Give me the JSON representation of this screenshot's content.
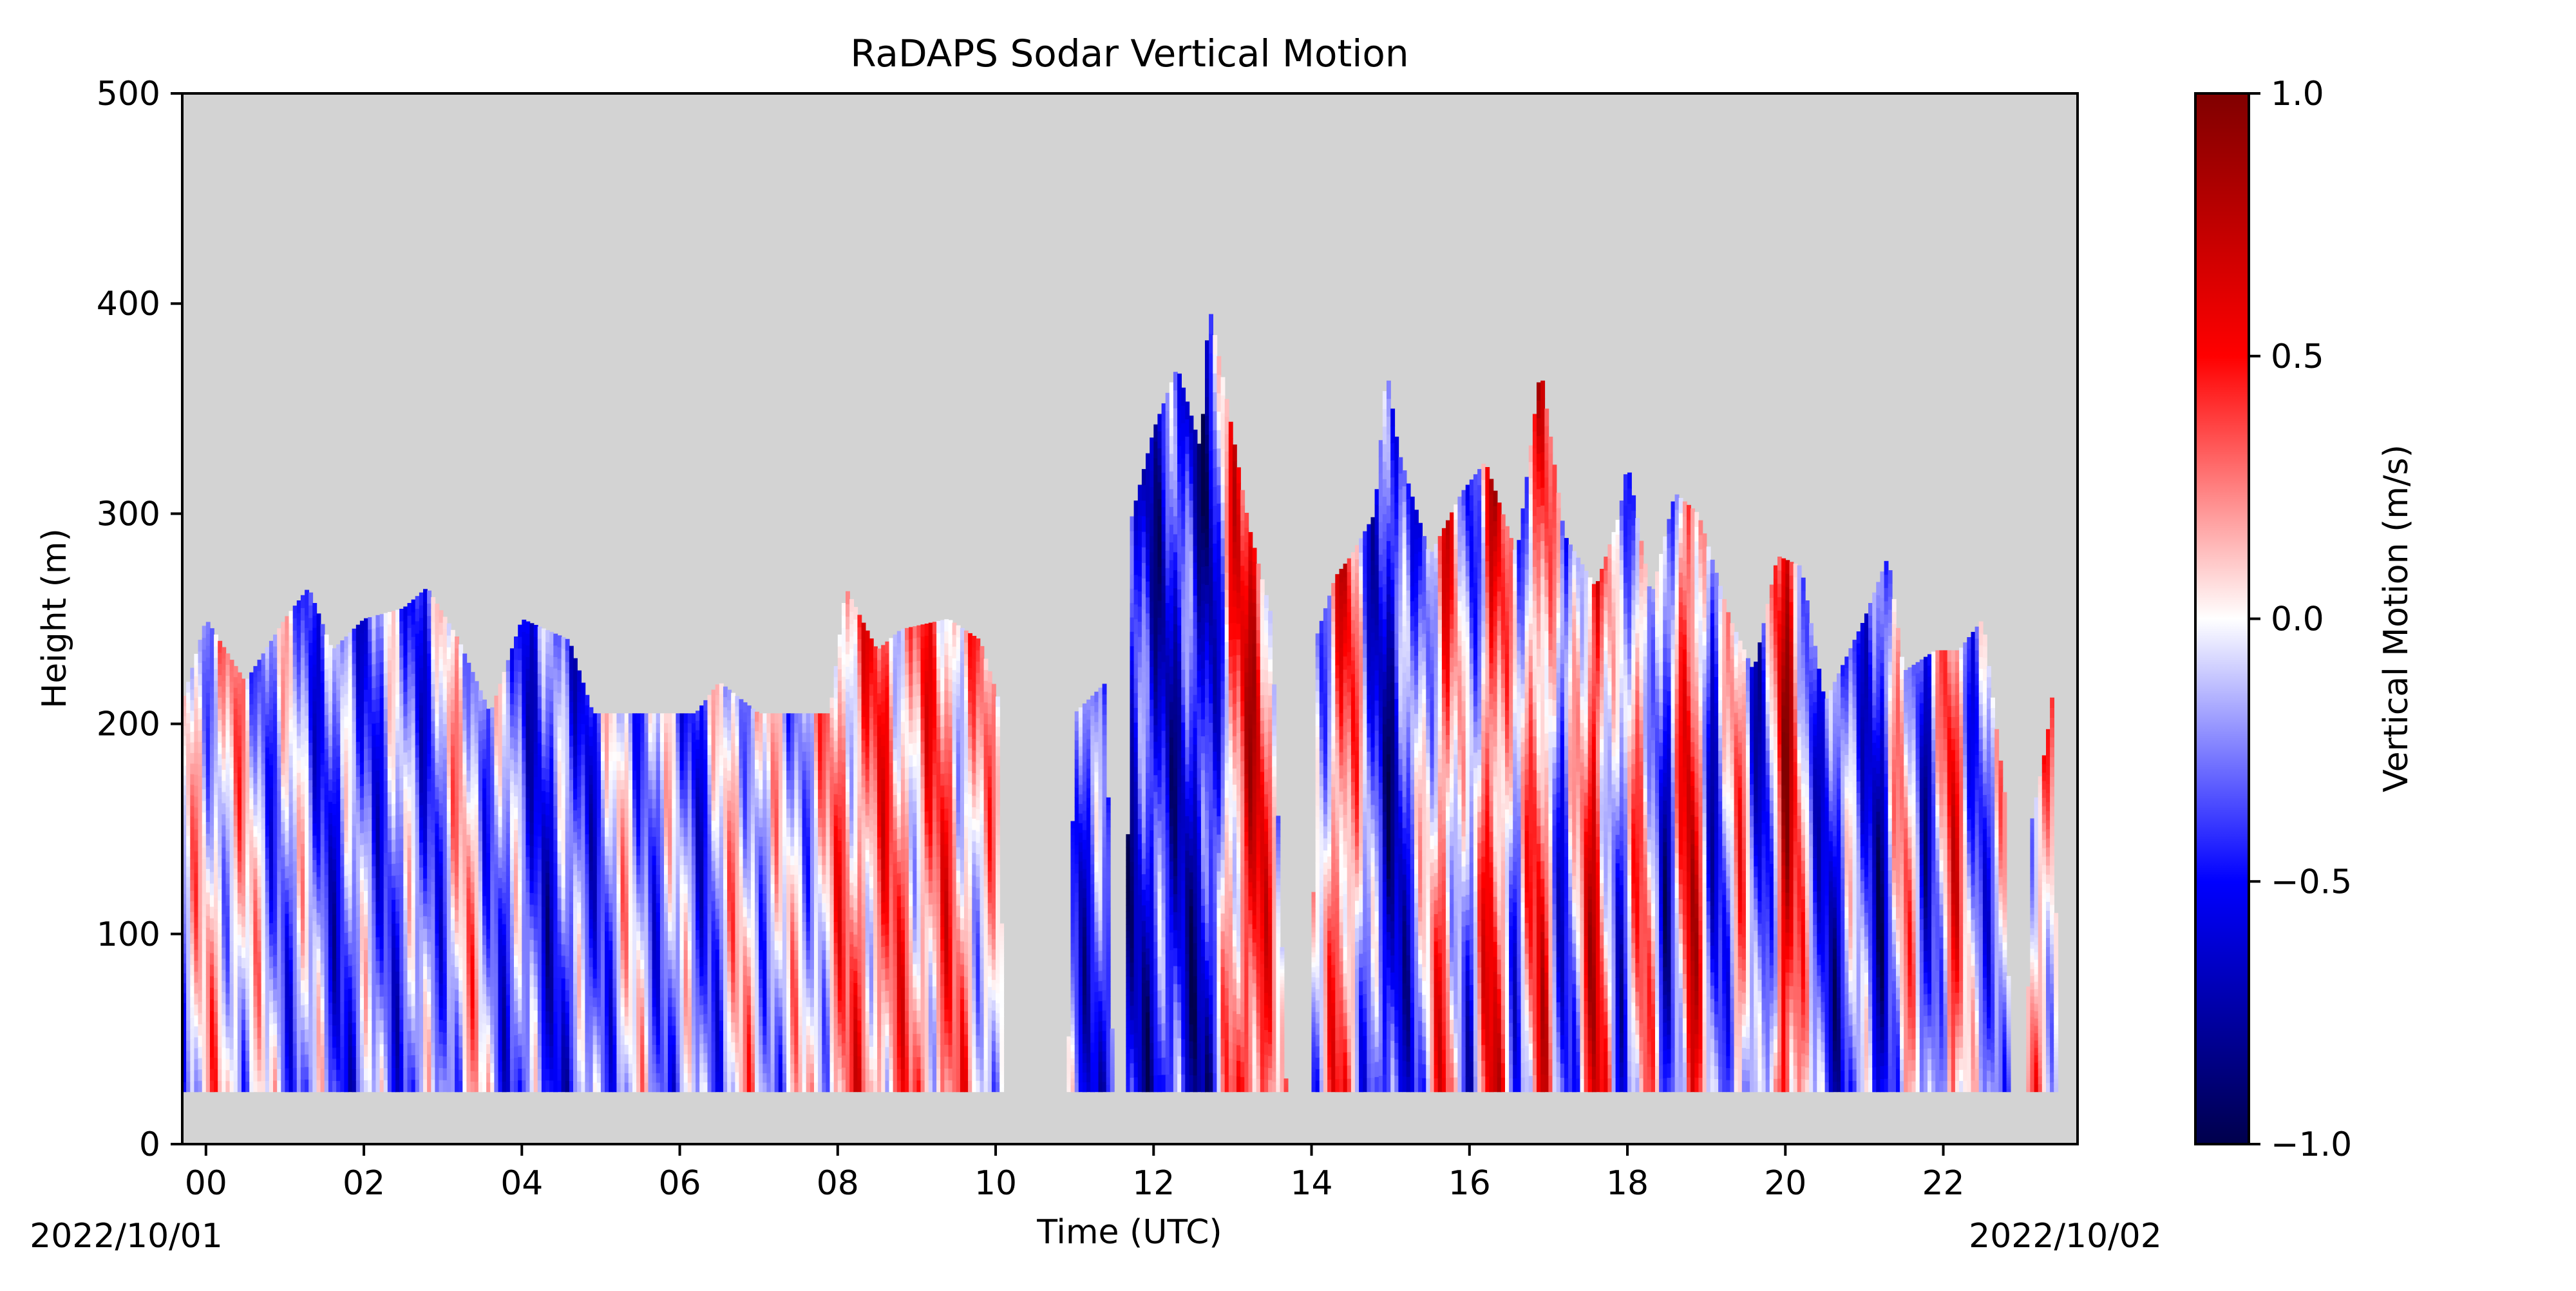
{
  "chart_data": {
    "type": "heatmap",
    "title": "RaDAPS Sodar Vertical Motion",
    "xlabel": "Time (UTC)",
    "ylabel": "Height (m)",
    "x_tick_labels": [
      "00",
      "02",
      "04",
      "06",
      "08",
      "10",
      "12",
      "14",
      "16",
      "18",
      "20",
      "22"
    ],
    "x_tick_values_hours": [
      0,
      2,
      4,
      6,
      8,
      10,
      12,
      14,
      16,
      18,
      20,
      22
    ],
    "xlim_hours": [
      -0.3,
      23.7
    ],
    "date_start_label": "2022/10/01",
    "date_end_label": "2022/10/02",
    "y_ticks": [
      0,
      100,
      200,
      300,
      400,
      500
    ],
    "ylim": [
      0,
      500
    ],
    "missing_data_color": "#d3d3d3",
    "colorbar": {
      "label": "Vertical Motion (m/s)",
      "colormap": "seismic",
      "vmin": -1.0,
      "vmax": 1.0,
      "ticks": [
        -1.0,
        -0.5,
        0.0,
        0.5,
        1.0
      ],
      "tick_labels": [
        "−1.0",
        "−0.5",
        "0.0",
        "0.5",
        "1.0"
      ],
      "stops": [
        "#00004c",
        "#0000ff",
        "#ffffff",
        "#ff0000",
        "#800000"
      ]
    },
    "bottom_height_m": 25,
    "top_height_profile": [
      {
        "h": -0.3,
        "top": 210
      },
      {
        "h": 0.0,
        "top": 250
      },
      {
        "h": 0.5,
        "top": 220
      },
      {
        "h": 1.0,
        "top": 250
      },
      {
        "h": 1.3,
        "top": 265
      },
      {
        "h": 1.6,
        "top": 235
      },
      {
        "h": 2.0,
        "top": 250
      },
      {
        "h": 2.5,
        "top": 255
      },
      {
        "h": 2.8,
        "top": 265
      },
      {
        "h": 3.2,
        "top": 240
      },
      {
        "h": 3.6,
        "top": 205
      },
      {
        "h": 4.0,
        "top": 250
      },
      {
        "h": 4.6,
        "top": 240
      },
      {
        "h": 4.9,
        "top": 205
      },
      {
        "h": 6.2,
        "top": 205
      },
      {
        "h": 6.5,
        "top": 220
      },
      {
        "h": 7.0,
        "top": 205
      },
      {
        "h": 7.9,
        "top": 205
      },
      {
        "h": 8.1,
        "top": 265
      },
      {
        "h": 8.5,
        "top": 235
      },
      {
        "h": 8.8,
        "top": 245
      },
      {
        "h": 9.4,
        "top": 250
      },
      {
        "h": 9.8,
        "top": 240
      },
      {
        "h": 10.05,
        "top": 210
      },
      {
        "h": 10.1,
        "top": 0
      },
      {
        "h": 10.9,
        "top": 0
      },
      {
        "h": 11.0,
        "top": 205
      },
      {
        "h": 11.4,
        "top": 220
      },
      {
        "h": 11.5,
        "top": 0
      },
      {
        "h": 11.65,
        "top": 0
      },
      {
        "h": 11.7,
        "top": 295
      },
      {
        "h": 12.0,
        "top": 340
      },
      {
        "h": 12.3,
        "top": 370
      },
      {
        "h": 12.6,
        "top": 330
      },
      {
        "h": 12.7,
        "top": 400
      },
      {
        "h": 12.9,
        "top": 360
      },
      {
        "h": 13.2,
        "top": 295
      },
      {
        "h": 13.5,
        "top": 250
      },
      {
        "h": 13.7,
        "top": 0
      },
      {
        "h": 14.0,
        "top": 0
      },
      {
        "h": 14.05,
        "top": 240
      },
      {
        "h": 14.3,
        "top": 270
      },
      {
        "h": 14.5,
        "top": 280
      },
      {
        "h": 14.8,
        "top": 300
      },
      {
        "h": 14.95,
        "top": 370
      },
      {
        "h": 15.1,
        "top": 330
      },
      {
        "h": 15.5,
        "top": 280
      },
      {
        "h": 15.9,
        "top": 310
      },
      {
        "h": 16.2,
        "top": 325
      },
      {
        "h": 16.6,
        "top": 280
      },
      {
        "h": 16.9,
        "top": 370
      },
      {
        "h": 17.2,
        "top": 290
      },
      {
        "h": 17.6,
        "top": 265
      },
      {
        "h": 17.9,
        "top": 300
      },
      {
        "h": 18.0,
        "top": 325
      },
      {
        "h": 18.3,
        "top": 260
      },
      {
        "h": 18.6,
        "top": 310
      },
      {
        "h": 18.9,
        "top": 300
      },
      {
        "h": 19.3,
        "top": 250
      },
      {
        "h": 19.6,
        "top": 225
      },
      {
        "h": 19.9,
        "top": 280
      },
      {
        "h": 20.2,
        "top": 275
      },
      {
        "h": 20.5,
        "top": 210
      },
      {
        "h": 21.0,
        "top": 250
      },
      {
        "h": 21.3,
        "top": 280
      },
      {
        "h": 21.5,
        "top": 225
      },
      {
        "h": 21.9,
        "top": 235
      },
      {
        "h": 22.2,
        "top": 235
      },
      {
        "h": 22.5,
        "top": 250
      },
      {
        "h": 22.8,
        "top": 160
      },
      {
        "h": 22.85,
        "top": 0
      },
      {
        "h": 23.05,
        "top": 0
      },
      {
        "h": 23.1,
        "top": 150
      },
      {
        "h": 23.3,
        "top": 190
      },
      {
        "h": 23.4,
        "top": 220
      },
      {
        "h": 23.45,
        "top": 0
      }
    ],
    "column_motion_profile": [
      {
        "h": -0.3,
        "w": -0.1
      },
      {
        "h": 0.3,
        "w": 0.1
      },
      {
        "h": 0.7,
        "w": -0.15
      },
      {
        "h": 1.2,
        "w": -0.2
      },
      {
        "h": 1.7,
        "w": -0.35
      },
      {
        "h": 2.2,
        "w": -0.25
      },
      {
        "h": 2.8,
        "w": -0.3
      },
      {
        "h": 3.3,
        "w": 0.05
      },
      {
        "h": 3.8,
        "w": -0.3
      },
      {
        "h": 4.3,
        "w": -0.4
      },
      {
        "h": 4.8,
        "w": -0.35
      },
      {
        "h": 5.3,
        "w": -0.1
      },
      {
        "h": 5.8,
        "w": -0.2
      },
      {
        "h": 6.3,
        "w": -0.3
      },
      {
        "h": 6.8,
        "w": 0.05
      },
      {
        "h": 7.3,
        "w": -0.15
      },
      {
        "h": 7.8,
        "w": 0.05
      },
      {
        "h": 8.3,
        "w": 0.3
      },
      {
        "h": 8.8,
        "w": 0.2
      },
      {
        "h": 9.3,
        "w": 0.25
      },
      {
        "h": 9.8,
        "w": 0.1
      },
      {
        "h": 10.3,
        "w": -0.2
      },
      {
        "h": 11.2,
        "w": -0.4
      },
      {
        "h": 11.8,
        "w": -0.55
      },
      {
        "h": 12.3,
        "w": -0.5
      },
      {
        "h": 12.7,
        "w": -0.65
      },
      {
        "h": 13.0,
        "w": 0.3
      },
      {
        "h": 13.3,
        "w": 0.55
      },
      {
        "h": 13.6,
        "w": -0.1
      },
      {
        "h": 14.1,
        "w": -0.2
      },
      {
        "h": 14.4,
        "w": 0.5
      },
      {
        "h": 14.7,
        "w": -0.3
      },
      {
        "h": 15.0,
        "w": -0.6
      },
      {
        "h": 15.4,
        "w": -0.2
      },
      {
        "h": 15.7,
        "w": 0.4
      },
      {
        "h": 16.0,
        "w": -0.4
      },
      {
        "h": 16.3,
        "w": 0.6
      },
      {
        "h": 16.6,
        "w": -0.3
      },
      {
        "h": 16.9,
        "w": 0.5
      },
      {
        "h": 17.2,
        "w": -0.45
      },
      {
        "h": 17.6,
        "w": 0.6
      },
      {
        "h": 17.9,
        "w": -0.4
      },
      {
        "h": 18.2,
        "w": 0.3
      },
      {
        "h": 18.5,
        "w": -0.55
      },
      {
        "h": 18.8,
        "w": 0.65
      },
      {
        "h": 19.1,
        "w": -0.5
      },
      {
        "h": 19.4,
        "w": 0.2
      },
      {
        "h": 19.7,
        "w": -0.55
      },
      {
        "h": 20.0,
        "w": 0.7
      },
      {
        "h": 20.3,
        "w": -0.2
      },
      {
        "h": 20.6,
        "w": -0.5
      },
      {
        "h": 20.9,
        "w": -0.2
      },
      {
        "h": 21.2,
        "w": -0.6
      },
      {
        "h": 21.5,
        "w": 0.2
      },
      {
        "h": 21.8,
        "w": -0.5
      },
      {
        "h": 22.1,
        "w": 0.4
      },
      {
        "h": 22.4,
        "w": -0.3
      },
      {
        "h": 22.7,
        "w": -0.1
      },
      {
        "h": 23.2,
        "w": 0.2
      },
      {
        "h": 23.5,
        "w": 0.1
      }
    ]
  }
}
